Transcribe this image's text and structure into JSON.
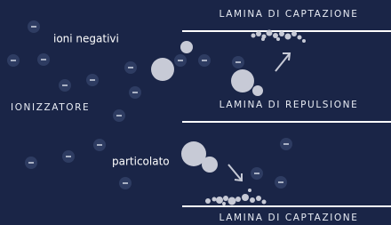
{
  "plates": {
    "top": "LAMINA DI CAPTAZIONE",
    "middle": "LAMINA DI REPULSIONE",
    "bottom": "LAMINA DI CAPTAZIONE"
  },
  "labels": {
    "ions": "ioni negativi",
    "ionizer": "IONIZZATORE",
    "particles": "particolato"
  }
}
